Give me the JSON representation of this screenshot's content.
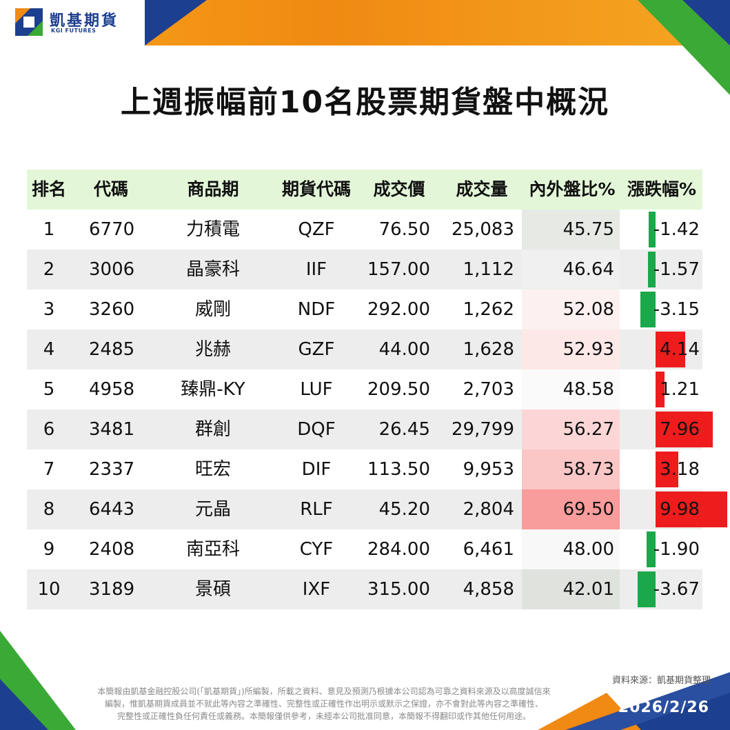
{
  "brand": {
    "name_zh": "凱基期貨",
    "name_en": "KGI FUTURES",
    "colors": {
      "blue": "#1d3f8f",
      "orange": "#f08a12",
      "green": "#3aa935"
    }
  },
  "title": "上週振幅前10名股票期貨盤中概況",
  "table": {
    "headers": [
      "排名",
      "代碼",
      "商品期",
      "期貨代碼",
      "成交價",
      "成交量",
      "內外盤比%",
      "漲跌幅%"
    ],
    "rows": [
      {
        "rank": "1",
        "code": "6770",
        "name": "力積電",
        "futures_code": "QZF",
        "price": "76.50",
        "volume": "25,083",
        "ratio": "45.75",
        "change": "-1.42",
        "change_value": -1.42,
        "ratio_color": "#e6e9e4"
      },
      {
        "rank": "2",
        "code": "3006",
        "name": "晶豪科",
        "futures_code": "IIF",
        "price": "157.00",
        "volume": "1,112",
        "ratio": "46.64",
        "change": "-1.57",
        "change_value": -1.57,
        "ratio_color": "#eff0ef"
      },
      {
        "rank": "3",
        "code": "3260",
        "name": "威剛",
        "futures_code": "NDF",
        "price": "292.00",
        "volume": "1,262",
        "ratio": "52.08",
        "change": "-3.15",
        "change_value": -3.15,
        "ratio_color": "#fdf0f0"
      },
      {
        "rank": "4",
        "code": "2485",
        "name": "兆赫",
        "futures_code": "GZF",
        "price": "44.00",
        "volume": "1,628",
        "ratio": "52.93",
        "change": "4.14",
        "change_value": 4.14,
        "ratio_color": "#fde8e8"
      },
      {
        "rank": "5",
        "code": "4958",
        "name": "臻鼎-KY",
        "futures_code": "LUF",
        "price": "209.50",
        "volume": "2,703",
        "ratio": "48.58",
        "change": "1.21",
        "change_value": 1.21,
        "ratio_color": "#fafafa"
      },
      {
        "rank": "6",
        "code": "3481",
        "name": "群創",
        "futures_code": "DQF",
        "price": "26.45",
        "volume": "29,799",
        "ratio": "56.27",
        "change": "7.96",
        "change_value": 7.96,
        "ratio_color": "#fcd6d6"
      },
      {
        "rank": "7",
        "code": "2337",
        "name": "旺宏",
        "futures_code": "DIF",
        "price": "113.50",
        "volume": "9,953",
        "ratio": "58.73",
        "change": "3.18",
        "change_value": 3.18,
        "ratio_color": "#fbc6c6"
      },
      {
        "rank": "8",
        "code": "6443",
        "name": "元晶",
        "futures_code": "RLF",
        "price": "45.20",
        "volume": "2,804",
        "ratio": "69.50",
        "change": "9.98",
        "change_value": 9.98,
        "ratio_color": "#f89c9c"
      },
      {
        "rank": "9",
        "code": "2408",
        "name": "南亞科",
        "futures_code": "CYF",
        "price": "284.00",
        "volume": "6,461",
        "ratio": "48.00",
        "change": "-1.90",
        "change_value": -1.9,
        "ratio_color": "#f7f8f7"
      },
      {
        "rank": "10",
        "code": "3189",
        "name": "景碩",
        "futures_code": "IXF",
        "price": "315.00",
        "volume": "4,858",
        "ratio": "42.01",
        "change": "-3.67",
        "change_value": -3.67,
        "ratio_color": "#dfe2dd"
      }
    ],
    "bar_colors": {
      "up": "#ee1c1c",
      "down": "#1aa84a"
    },
    "change_max_abs": 10
  },
  "footer": {
    "source": "資料來源：凱基期貨整理",
    "disclaimer_lines": [
      "本簡報由凱基金融控股公司(「凱基期貨」)所編製，所載之資料、意見及預測乃根據本公司認為可靠之資料來源及以高度誠信來",
      "編製，惟凱基期貨成員並不就此等內容之準確性、完整性或正確性作出明示或默示之保證，亦不會對此等內容之準確性、",
      "完整性或正確性負任何責任或義務。本簡報僅供參考，未經本公司批准同意，本簡報不得翻印或作其他任何用途。"
    ],
    "date": "2026/2/26"
  }
}
